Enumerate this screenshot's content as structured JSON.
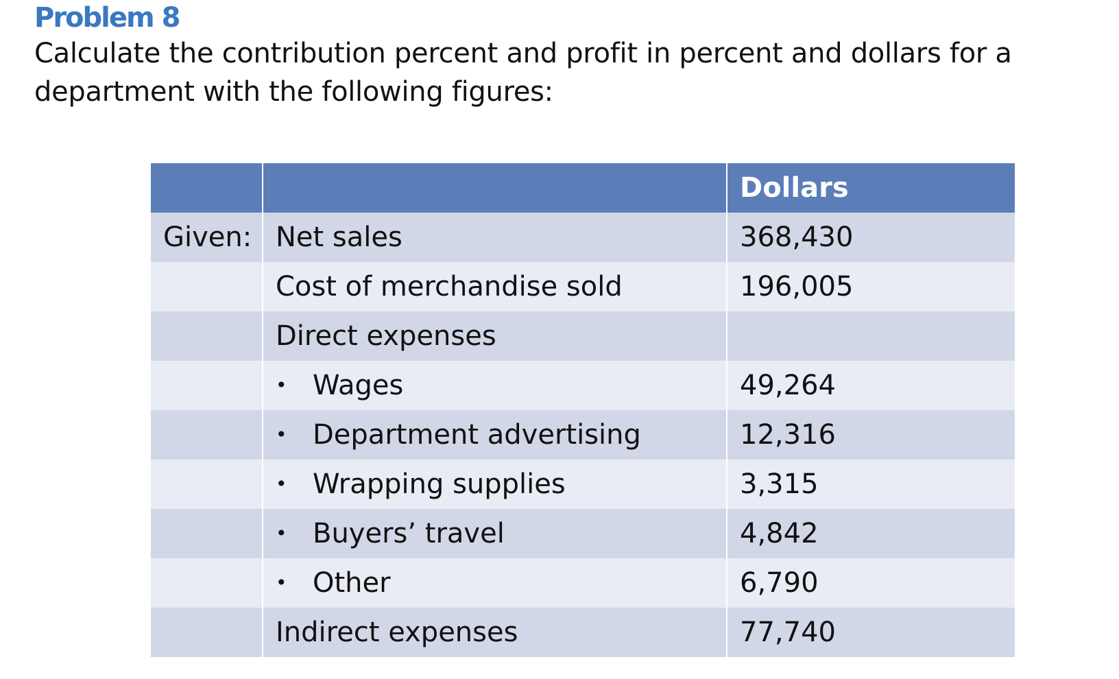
{
  "slide": {
    "title": "Problem 8",
    "prompt": "Calculate the contribution percent and profit in percent and dollars for a department with the following figures:"
  },
  "table": {
    "headers": [
      "",
      "",
      "Dollars"
    ],
    "rows": [
      {
        "given": "Given:",
        "item": "Net sales",
        "bullet": false,
        "dollars": "368,430"
      },
      {
        "given": "",
        "item": "Cost of merchandise sold",
        "bullet": false,
        "dollars": "196,005"
      },
      {
        "given": "",
        "item": "Direct expenses",
        "bullet": false,
        "dollars": ""
      },
      {
        "given": "",
        "item": "Wages",
        "bullet": true,
        "dollars": "49,264"
      },
      {
        "given": "",
        "item": "Department advertising",
        "bullet": true,
        "dollars": "12,316"
      },
      {
        "given": "",
        "item": "Wrapping supplies",
        "bullet": true,
        "dollars": "3,315"
      },
      {
        "given": "",
        "item": "Buyers’ travel",
        "bullet": true,
        "dollars": "4,842"
      },
      {
        "given": "",
        "item": "Other",
        "bullet": true,
        "dollars": "6,790"
      },
      {
        "given": "",
        "item": "Indirect expenses",
        "bullet": false,
        "dollars": "77,740"
      }
    ]
  },
  "colors": {
    "title": "#3A78C0",
    "header_bg": "#5B7DB8",
    "row_dark": "#D1D7E7",
    "row_light": "#E9ECF4"
  }
}
